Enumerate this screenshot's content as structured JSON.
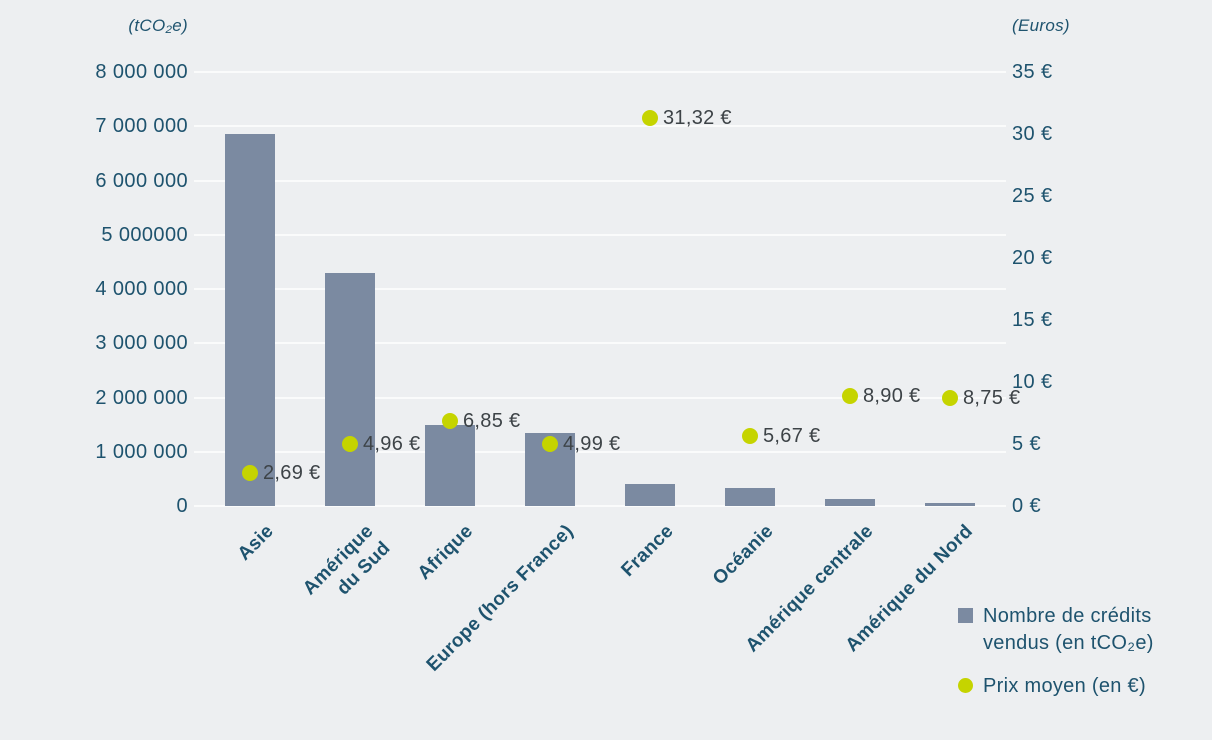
{
  "chart_data": {
    "type": "combo",
    "title": "",
    "categories": [
      "Asie",
      "Amérique du Sud",
      "Afrique",
      "Europe (hors France)",
      "France",
      "Océanie",
      "Amérique centrale",
      "Amérique du Nord"
    ],
    "categories_display": [
      "Asie",
      "Amérique\ndu Sud",
      "Afrique",
      "Europe (hors France)",
      "France",
      "Océanie",
      "Amérique centrale",
      "Amérique du Nord"
    ],
    "series": [
      {
        "name": "Nombre de crédits vendus (en tCO₂e)",
        "type": "bar",
        "axis": "left",
        "values": [
          6850000,
          4300000,
          1500000,
          1350000,
          400000,
          330000,
          120000,
          50000
        ]
      },
      {
        "name": "Prix moyen (en €)",
        "type": "point",
        "axis": "right",
        "values": [
          2.69,
          4.96,
          6.85,
          4.99,
          31.32,
          5.67,
          8.9,
          8.75
        ],
        "labels": [
          "2,69 €",
          "4,96 €",
          "6,85 €",
          "4,99 €",
          "31,32 €",
          "5,67 €",
          "8,90 €",
          "8,75 €"
        ]
      }
    ],
    "left_axis": {
      "title": "(tCO₂e)",
      "min": 0,
      "max": 8000000,
      "ticks": [
        "8 000 000",
        "7 000 000",
        "6 000 000",
        "5 000000",
        "4 000 000",
        "3 000 000",
        "2 000 000",
        "1 000 000",
        "0"
      ]
    },
    "right_axis": {
      "title": "(Euros)",
      "min": 0,
      "max": 35,
      "ticks": [
        "35 €",
        "30 €",
        "25 €",
        "20 €",
        "15 €",
        "10 €",
        "5 €",
        "0 €"
      ]
    },
    "legend": [
      {
        "marker": "square",
        "label": "Nombre de crédits vendus (en tCO₂e)"
      },
      {
        "marker": "circle",
        "label": "Prix moyen (en €)"
      }
    ],
    "grid": true,
    "legend_position": "bottom-right",
    "colors": {
      "background": "#edeff1",
      "bar": "#7b8aa1",
      "dot": "#c5d400",
      "text": "#1e536e",
      "value_label": "#3d4347",
      "gridline": "#fafbfb"
    }
  }
}
